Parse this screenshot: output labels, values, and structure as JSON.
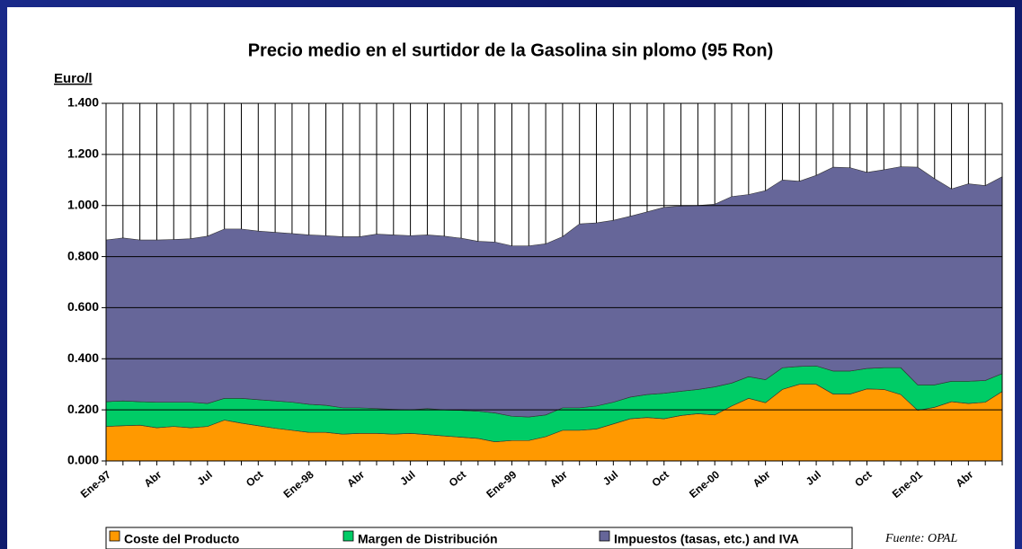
{
  "chart_data": {
    "type": "stacked-area",
    "title": "Precio medio en el surtidor de la Gasolina sin plomo (95 Ron)",
    "y_label": "Euro/l",
    "source": "Fuente:  OPAL",
    "categories": [
      "Ene-97",
      null,
      null,
      "Abr",
      null,
      null,
      "Jul",
      null,
      null,
      "Oct",
      null,
      null,
      "Ene-98",
      null,
      null,
      "Abr",
      null,
      null,
      "Jul",
      null,
      null,
      "Oct",
      null,
      null,
      "Ene-99",
      null,
      null,
      "Abr",
      null,
      null,
      "Jul",
      null,
      null,
      "Oct",
      null,
      null,
      "Ene-00",
      null,
      null,
      "Abr",
      null,
      null,
      "Jul",
      null,
      null,
      "Oct",
      null,
      null,
      "Ene-01",
      null,
      null,
      "Abr",
      null,
      null
    ],
    "series": [
      {
        "name": "Coste del Producto",
        "color": "#ff9900",
        "values": [
          0.135,
          0.138,
          0.14,
          0.13,
          0.135,
          0.13,
          0.135,
          0.16,
          0.148,
          0.138,
          0.128,
          0.12,
          0.112,
          0.112,
          0.105,
          0.108,
          0.108,
          0.105,
          0.108,
          0.103,
          0.098,
          0.093,
          0.088,
          0.075,
          0.08,
          0.08,
          0.095,
          0.12,
          0.12,
          0.125,
          0.145,
          0.165,
          0.17,
          0.165,
          0.178,
          0.185,
          0.18,
          0.215,
          0.245,
          0.228,
          0.28,
          0.3,
          0.3,
          0.262,
          0.262,
          0.282,
          0.28,
          0.26,
          0.198,
          0.21,
          0.232,
          0.225,
          0.23,
          0.272
        ]
      },
      {
        "name": "Margen de Distribución",
        "color": "#00cc66",
        "values": [
          0.097,
          0.097,
          0.092,
          0.1,
          0.095,
          0.1,
          0.09,
          0.085,
          0.097,
          0.102,
          0.107,
          0.11,
          0.11,
          0.106,
          0.103,
          0.1,
          0.097,
          0.097,
          0.092,
          0.102,
          0.102,
          0.105,
          0.107,
          0.113,
          0.095,
          0.092,
          0.085,
          0.088,
          0.088,
          0.09,
          0.085,
          0.085,
          0.09,
          0.1,
          0.095,
          0.095,
          0.11,
          0.09,
          0.085,
          0.09,
          0.085,
          0.07,
          0.072,
          0.09,
          0.09,
          0.08,
          0.085,
          0.105,
          0.1,
          0.088,
          0.08,
          0.087,
          0.085,
          0.07
        ]
      },
      {
        "name": "Impuestos (tasas, etc.) and IVA",
        "color": "#666699",
        "values": [
          0.633,
          0.638,
          0.633,
          0.635,
          0.637,
          0.64,
          0.655,
          0.663,
          0.663,
          0.66,
          0.66,
          0.66,
          0.663,
          0.664,
          0.67,
          0.67,
          0.683,
          0.683,
          0.682,
          0.68,
          0.68,
          0.674,
          0.665,
          0.669,
          0.667,
          0.67,
          0.67,
          0.67,
          0.72,
          0.717,
          0.712,
          0.708,
          0.715,
          0.728,
          0.725,
          0.72,
          0.715,
          0.73,
          0.713,
          0.74,
          0.735,
          0.725,
          0.746,
          0.798,
          0.796,
          0.768,
          0.775,
          0.787,
          0.852,
          0.807,
          0.753,
          0.773,
          0.763,
          0.771
        ]
      }
    ],
    "ylim": [
      0,
      1.4
    ],
    "yticks": [
      {
        "value": 0,
        "label": "0.000"
      },
      {
        "value": 0.2,
        "label": "0.200"
      },
      {
        "value": 0.4,
        "label": "0.400"
      },
      {
        "value": 0.6,
        "label": "0.600"
      },
      {
        "value": 0.8,
        "label": "0.800"
      },
      {
        "value": 1.0,
        "label": "1.000"
      },
      {
        "value": 1.2,
        "label": "1.200"
      },
      {
        "value": 1.4,
        "label": "1.400"
      }
    ],
    "grid": true,
    "legend": "bottom"
  }
}
